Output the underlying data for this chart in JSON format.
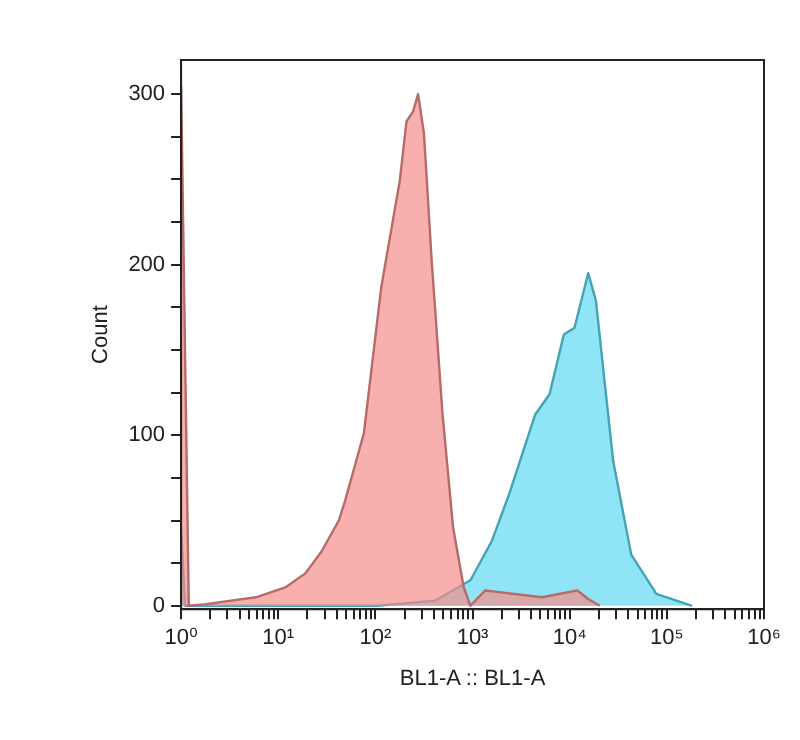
{
  "chart_data": {
    "type": "area",
    "xlabel": "BL1-A :: BL1-A",
    "ylabel": "Count",
    "log": "x",
    "grid": false,
    "legend": false,
    "xlim": [
      1,
      1000000
    ],
    "ylim": [
      -2,
      320
    ],
    "xticks": [
      {
        "value": 1,
        "label": "10⁰"
      },
      {
        "value": 2,
        "label": null
      },
      {
        "value": 3,
        "label": null
      },
      {
        "value": 4,
        "label": null
      },
      {
        "value": 5,
        "label": null
      },
      {
        "value": 6,
        "label": null
      },
      {
        "value": 7,
        "label": null
      },
      {
        "value": 8,
        "label": null
      },
      {
        "value": 9,
        "label": null
      },
      {
        "value": 10,
        "label": "10¹"
      },
      {
        "value": 20,
        "label": null
      },
      {
        "value": 30,
        "label": null
      },
      {
        "value": 40,
        "label": null
      },
      {
        "value": 50,
        "label": null
      },
      {
        "value": 60,
        "label": null
      },
      {
        "value": 70,
        "label": null
      },
      {
        "value": 80,
        "label": null
      },
      {
        "value": 90,
        "label": null
      },
      {
        "value": 100,
        "label": "10²"
      },
      {
        "value": 200,
        "label": null
      },
      {
        "value": 300,
        "label": null
      },
      {
        "value": 400,
        "label": null
      },
      {
        "value": 500,
        "label": null
      },
      {
        "value": 600,
        "label": null
      },
      {
        "value": 700,
        "label": null
      },
      {
        "value": 800,
        "label": null
      },
      {
        "value": 900,
        "label": null
      },
      {
        "value": 1000,
        "label": "10³"
      },
      {
        "value": 2000,
        "label": null
      },
      {
        "value": 3000,
        "label": null
      },
      {
        "value": 4000,
        "label": null
      },
      {
        "value": 5000,
        "label": null
      },
      {
        "value": 6000,
        "label": null
      },
      {
        "value": 7000,
        "label": null
      },
      {
        "value": 8000,
        "label": null
      },
      {
        "value": 9000,
        "label": null
      },
      {
        "value": 10000,
        "label": "10⁴"
      },
      {
        "value": 20000,
        "label": null
      },
      {
        "value": 30000,
        "label": null
      },
      {
        "value": 40000,
        "label": null
      },
      {
        "value": 50000,
        "label": null
      },
      {
        "value": 60000,
        "label": null
      },
      {
        "value": 70000,
        "label": null
      },
      {
        "value": 80000,
        "label": null
      },
      {
        "value": 90000,
        "label": null
      },
      {
        "value": 100000,
        "label": "10⁵"
      },
      {
        "value": 200000,
        "label": null
      },
      {
        "value": 300000,
        "label": null
      },
      {
        "value": 400000,
        "label": null
      },
      {
        "value": 500000,
        "label": null
      },
      {
        "value": 600000,
        "label": null
      },
      {
        "value": 700000,
        "label": null
      },
      {
        "value": 800000,
        "label": null
      },
      {
        "value": 900000,
        "label": null
      },
      {
        "value": 1000000,
        "label": "10⁶"
      }
    ],
    "yticks": [
      0,
      {
        "value": 25,
        "label": null
      },
      {
        "value": 50,
        "label": null
      },
      {
        "value": 75,
        "label": null
      },
      100,
      {
        "value": 125,
        "label": null
      },
      {
        "value": 150,
        "label": null
      },
      {
        "value": 175,
        "label": null
      },
      200,
      {
        "value": 225,
        "label": null
      },
      {
        "value": 250,
        "label": null
      },
      {
        "value": 275,
        "label": null
      },
      300
    ],
    "series": [
      {
        "color": "#f48f8a",
        "x": [
          1,
          1.2,
          1.8,
          5.9,
          12,
          19,
          28,
          42,
          49,
          76,
          115,
          178,
          209,
          245,
          275,
          316,
          380,
          490,
          630,
          810,
          950,
          1350,
          5200,
          12000,
          15500,
          20400
        ],
        "values": [
          305,
          0,
          1,
          5,
          11,
          19,
          32,
          50,
          62,
          101,
          187,
          249,
          284,
          290,
          300,
          277,
          202,
          113,
          46,
          11,
          0,
          9,
          5,
          9,
          4,
          0
        ]
      },
      {
        "color": "#5fd8f2",
        "x": [
          1,
          1.1,
          105,
          410,
          950,
          1580,
          2400,
          4400,
          6200,
          8700,
          11200,
          15500,
          18600,
          28000,
          43000,
          78000,
          182000
        ],
        "values": [
          46,
          0,
          0,
          3,
          15,
          38,
          66,
          112,
          124,
          159,
          163,
          195,
          179,
          85,
          30,
          7,
          0
        ]
      }
    ]
  }
}
